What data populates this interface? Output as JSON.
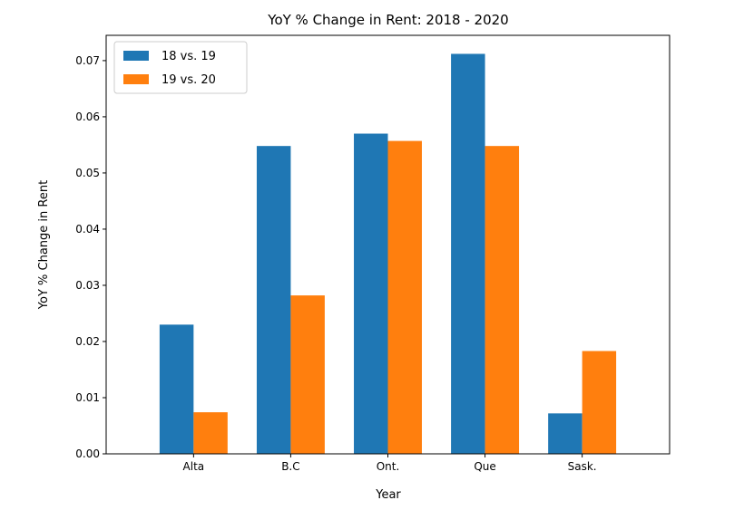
{
  "chart_data": {
    "type": "bar",
    "title": "YoY % Change in Rent: 2018 - 2020",
    "xlabel": "Year",
    "ylabel": "YoY % Change in Rent",
    "categories": [
      "Alta",
      "B.C",
      "Ont.",
      "Que",
      "Sask."
    ],
    "series": [
      {
        "name": "18 vs. 19",
        "color": "#1f77b4",
        "values": [
          0.023,
          0.0548,
          0.057,
          0.0712,
          0.0072
        ]
      },
      {
        "name": "19 vs. 20",
        "color": "#ff7f0e",
        "values": [
          0.0074,
          0.0282,
          0.0557,
          0.0548,
          0.0183
        ]
      }
    ],
    "ylim": [
      0,
      0.0745
    ],
    "yticks": [
      "0.00",
      "0.01",
      "0.02",
      "0.03",
      "0.04",
      "0.05",
      "0.06",
      "0.07"
    ],
    "legend_position": "top-left",
    "grid": false
  }
}
